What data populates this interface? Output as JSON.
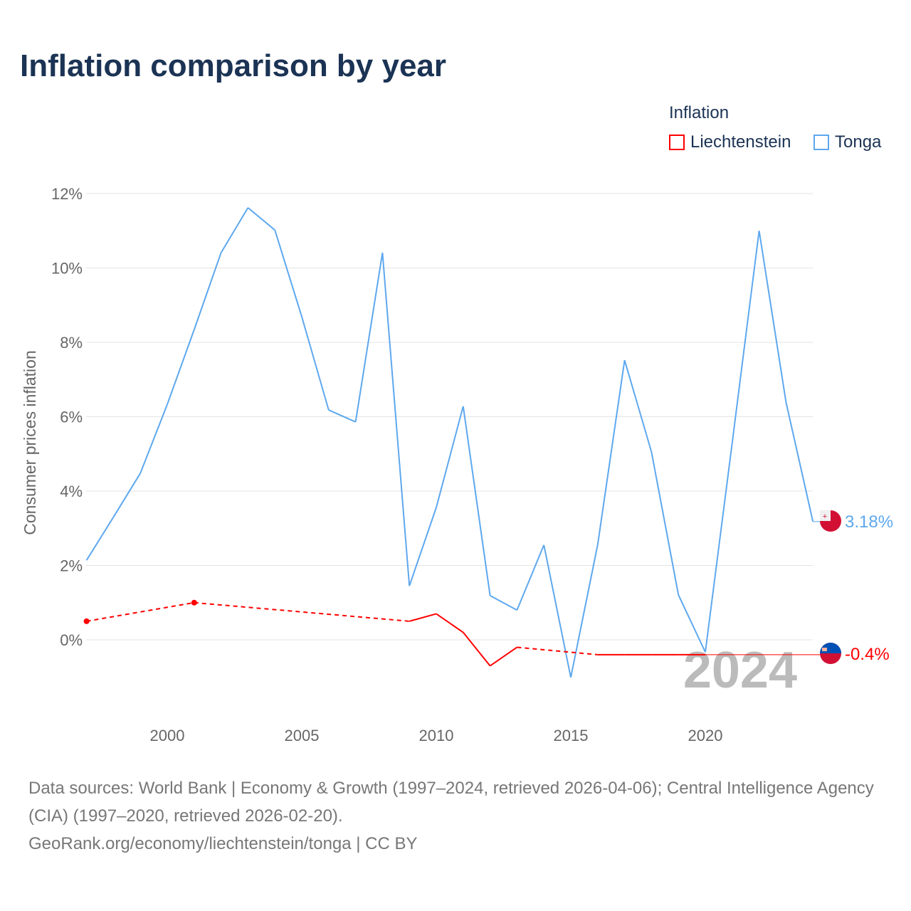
{
  "title": "Inflation comparison by year",
  "legend": {
    "title": "Inflation",
    "items": [
      {
        "label": "Liechtenstein",
        "color": "#ff0000"
      },
      {
        "label": "Tonga",
        "color": "#5ea8ee"
      }
    ]
  },
  "sources": {
    "line1": "Data sources: World Bank | Economy & Growth (1997–2024, retrieved 2026-04-06); Central Intelligence Agency (CIA) (1997–2020, retrieved 2026-02-20).",
    "line2": "GeoRank.org/economy/liechtenstein/tonga | CC BY"
  },
  "chart_data": {
    "type": "line",
    "title": "Inflation comparison by year",
    "ylabel": "Consumer prices inflation",
    "xlim": [
      1997,
      2024
    ],
    "ylim": [
      -2,
      12
    ],
    "yticks": [
      0,
      2,
      4,
      6,
      8,
      10,
      12
    ],
    "ytick_labels": [
      "0%",
      "2%",
      "4%",
      "6%",
      "8%",
      "10%",
      "12%"
    ],
    "xticks": [
      2000,
      2005,
      2010,
      2015,
      2020
    ],
    "xtick_labels": [
      "2000",
      "2005",
      "2010",
      "2015",
      "2020"
    ],
    "year_watermark": "2024",
    "series": [
      {
        "name": "Tonga",
        "color": "#5ea8ee",
        "end_label": "3.18%",
        "x": [
          1997,
          1998,
          1999,
          2000,
          2001,
          2002,
          2003,
          2004,
          2005,
          2006,
          2007,
          2008,
          2009,
          2010,
          2011,
          2012,
          2013,
          2014,
          2015,
          2016,
          2017,
          2018,
          2019,
          2020,
          2021,
          2022,
          2023,
          2024
        ],
        "y": [
          2.14,
          3.3,
          4.48,
          6.33,
          8.34,
          10.41,
          11.62,
          11.02,
          8.69,
          6.18,
          5.86,
          10.41,
          1.45,
          3.56,
          6.28,
          1.19,
          0.8,
          2.55,
          -1.01,
          2.56,
          7.52,
          5.05,
          1.21,
          -0.33,
          5.3,
          11.0,
          6.39,
          3.18
        ]
      },
      {
        "name": "Liechtenstein",
        "color": "#ff0000",
        "end_label": "-0.4%",
        "x": [
          1997,
          2001,
          2009,
          2010,
          2011,
          2012,
          2013,
          2016,
          2017,
          2018,
          2019,
          2020
        ],
        "y": [
          0.5,
          1.0,
          0.5,
          0.7,
          0.2,
          -0.7,
          -0.2,
          -0.4,
          -0.4,
          -0.4,
          -0.4,
          -0.4
        ]
      }
    ]
  }
}
